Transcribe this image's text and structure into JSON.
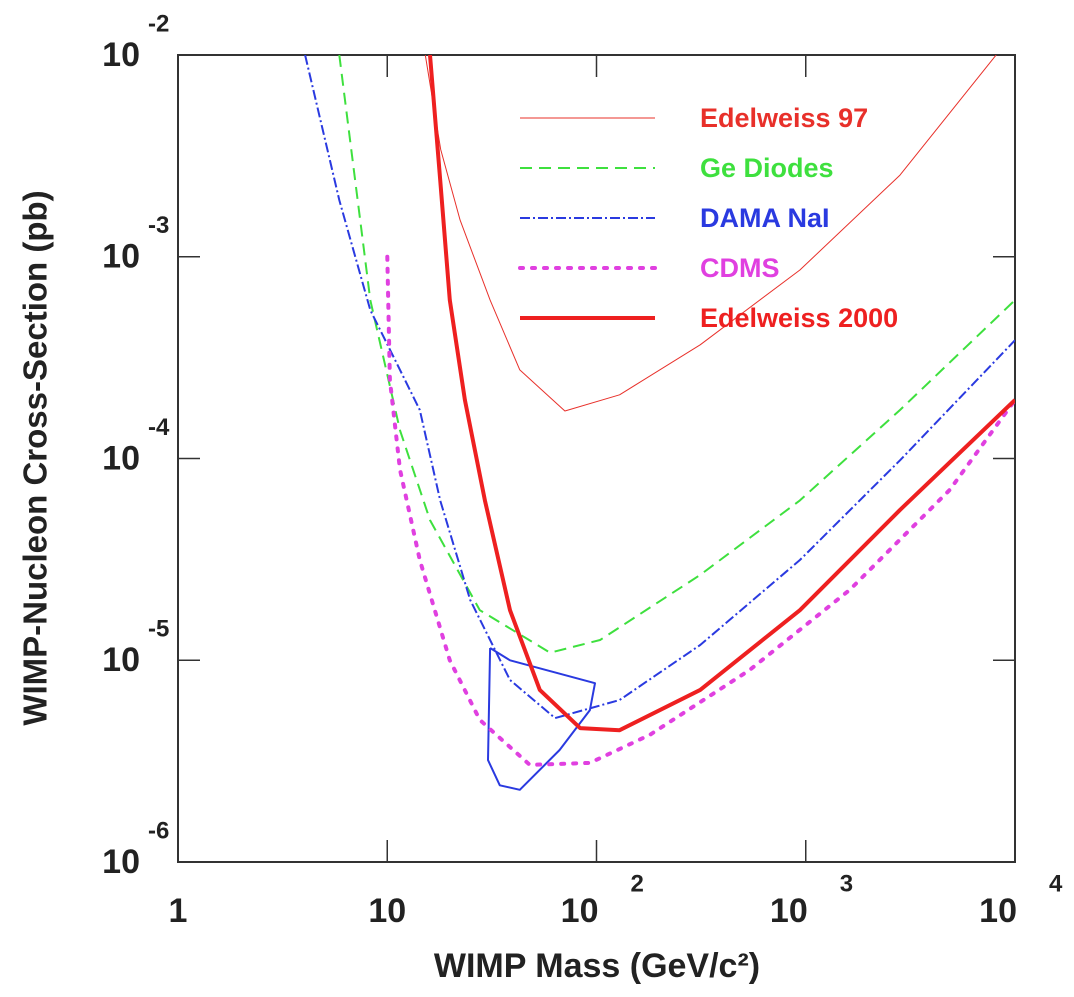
{
  "chart_data": {
    "type": "line",
    "xlabel": "WIMP Mass (GeV/c²)",
    "ylabel": "WIMP-Nucleon Cross-Section (pb)",
    "xscale": "log",
    "yscale": "log",
    "xlim": [
      1,
      10000
    ],
    "ylim": [
      1e-06,
      0.01
    ],
    "xticks": [
      1,
      10,
      {
        "value": 100,
        "label": "10",
        "exponent": "2"
      },
      {
        "value": 1000,
        "label": "10",
        "exponent": "3"
      },
      {
        "value": 10000,
        "label": "10",
        "exponent": "4"
      }
    ],
    "yticks": [
      {
        "value": 1e-06,
        "label": "10",
        "exponent": "-6"
      },
      {
        "value": 1e-05,
        "label": "10",
        "exponent": "-5"
      },
      {
        "value": 0.0001,
        "label": "10",
        "exponent": "-4"
      },
      {
        "value": 0.001,
        "label": "10",
        "exponent": "-3"
      },
      {
        "value": 0.01,
        "label": "10",
        "exponent": "-2"
      }
    ],
    "legend": "upper right",
    "series": [
      {
        "name": "Edelweiss 97",
        "color": "#e8302a",
        "dash": "solid",
        "linewidth": 1,
        "x": [
          15.2,
          18,
          22.3,
          31,
          43,
          70.6,
          129,
          313,
          938,
          2820,
          8500
        ],
        "values": [
          0.01,
          0.0034,
          0.00152,
          0.00061,
          0.000275,
          0.000172,
          0.000207,
          0.000366,
          0.00086,
          0.00254,
          0.0106
        ]
      },
      {
        "name": "Ge Diodes",
        "color": "#3ee03e",
        "dash": "dashed",
        "linewidth": 2,
        "x": [
          5.9,
          8.3,
          11.5,
          16,
          27.7,
          60,
          104,
          313,
          938,
          2820,
          10000
        ],
        "values": [
          0.01,
          0.00061,
          0.000138,
          4.95e-05,
          1.77e-05,
          1.09e-05,
          1.26e-05,
          2.65e-05,
          6.2e-05,
          0.000174,
          0.00061
        ]
      },
      {
        "name": "DAMA NaI",
        "color": "#2a3ae0",
        "dash": "dashdot",
        "linewidth": 2,
        "x": [
          4.05,
          5.9,
          8.3,
          11.5,
          14.3,
          17.9,
          24.9,
          38.6,
          63.4,
          129,
          313,
          938,
          2820,
          10000
        ],
        "values": [
          0.01,
          0.00191,
          0.000544,
          0.000275,
          0.000174,
          6.2e-05,
          1.99e-05,
          7.98e-06,
          5.17e-06,
          6.35e-06,
          1.19e-05,
          3.14e-05,
          9.8e-05,
          0.000386
        ]
      },
      {
        "name": "CDMS",
        "color": "#e040e0",
        "dash": "dotted",
        "linewidth": 4,
        "x": [
          10,
          10.3,
          11.5,
          14.3,
          19.9,
          27.7,
          48,
          93,
          180,
          540,
          1620,
          4870,
          10000
        ],
        "values": [
          0.001,
          0.000245,
          8.8e-05,
          3.14e-05,
          1e-05,
          5.06e-06,
          3.03e-06,
          3.1e-06,
          4.27e-06,
          8.96e-06,
          2.23e-05,
          6.98e-05,
          0.000195
        ]
      },
      {
        "name": "Edelweiss 2000",
        "color": "#ee2020",
        "dash": "solid",
        "linewidth": 4,
        "x": [
          16,
          17.9,
          19.9,
          23.5,
          29.3,
          38.6,
          53.6,
          83.5,
          129,
          313,
          938,
          2820,
          10000
        ],
        "values": [
          0.01,
          0.0024,
          0.00061,
          0.000195,
          6.2e-05,
          1.77e-05,
          7.13e-06,
          4.61e-06,
          4.5e-06,
          7.13e-06,
          1.77e-05,
          5.56e-05,
          0.000195
        ]
      }
    ],
    "contour": {
      "color": "#2a3ae0",
      "linewidth": 2,
      "x": [
        31,
        38.6,
        98.4,
        93,
        66.6,
        43,
        34.5,
        30.3,
        31
      ],
      "values": [
        1.15e-05,
        1e-05,
        7.7e-06,
        5.66e-06,
        3.59e-06,
        2.28e-06,
        2.4e-06,
        3.2e-06,
        1.15e-05
      ]
    }
  }
}
